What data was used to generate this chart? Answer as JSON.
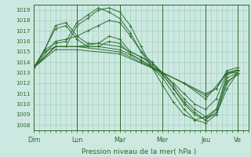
{
  "title": "",
  "xlabel": "Pression niveau de la mer( hPa )",
  "ylabel": "",
  "bg_color": "#cce8e0",
  "plot_bg_color": "#cce8e0",
  "grid_color": "#99ccbb",
  "line_color": "#2d6b2d",
  "ylim": [
    1007.5,
    1019.5
  ],
  "yticks": [
    1008,
    1009,
    1010,
    1011,
    1012,
    1013,
    1014,
    1015,
    1016,
    1017,
    1018,
    1019
  ],
  "day_positions": [
    0,
    24,
    48,
    72,
    96,
    114
  ],
  "day_labels": [
    "Dim",
    "Lun",
    "Mar",
    "Mer",
    "Jeu",
    "Ve"
  ],
  "xlim": [
    0,
    120
  ],
  "lines": [
    [
      0,
      1013.5,
      6,
      1015.0,
      12,
      1015.5,
      18,
      1015.5,
      24,
      1017.5,
      30,
      1018.2,
      36,
      1019.0,
      42,
      1019.2,
      48,
      1018.8,
      54,
      1017.5,
      60,
      1015.5,
      66,
      1013.5,
      72,
      1011.8,
      78,
      1010.2,
      84,
      1009.0,
      90,
      1008.5,
      96,
      1008.8,
      102,
      1009.5,
      108,
      1012.5,
      114,
      1013.0
    ],
    [
      0,
      1013.5,
      6,
      1015.2,
      12,
      1015.8,
      18,
      1016.0,
      24,
      1017.8,
      30,
      1018.5,
      36,
      1019.2,
      42,
      1018.8,
      48,
      1018.2,
      54,
      1016.8,
      60,
      1015.0,
      66,
      1013.5,
      72,
      1012.5,
      78,
      1011.0,
      84,
      1009.5,
      90,
      1008.5,
      96,
      1008.2,
      102,
      1009.0,
      108,
      1011.5,
      114,
      1013.0
    ],
    [
      0,
      1013.5,
      12,
      1016.0,
      18,
      1016.2,
      24,
      1016.5,
      30,
      1017.0,
      36,
      1017.5,
      42,
      1018.0,
      48,
      1017.8,
      54,
      1016.5,
      60,
      1015.0,
      66,
      1014.0,
      72,
      1012.8,
      78,
      1011.5,
      84,
      1010.0,
      90,
      1009.0,
      96,
      1008.5,
      102,
      1009.5,
      108,
      1012.8,
      114,
      1013.2
    ],
    [
      0,
      1013.5,
      12,
      1015.5,
      24,
      1015.5,
      36,
      1015.8,
      48,
      1015.5,
      60,
      1014.5,
      66,
      1014.0,
      72,
      1013.0,
      78,
      1012.0,
      84,
      1011.0,
      90,
      1010.0,
      96,
      1009.5,
      102,
      1010.5,
      108,
      1013.0,
      114,
      1013.2
    ],
    [
      0,
      1013.5,
      12,
      1015.5,
      24,
      1015.5,
      36,
      1015.5,
      48,
      1015.2,
      60,
      1014.2,
      72,
      1013.0,
      84,
      1012.0,
      96,
      1011.0,
      102,
      1011.5,
      108,
      1013.2,
      114,
      1013.5
    ],
    [
      0,
      1013.5,
      12,
      1015.5,
      24,
      1015.5,
      48,
      1015.0,
      60,
      1014.0,
      72,
      1013.0,
      84,
      1012.0,
      96,
      1010.8,
      102,
      1011.5,
      108,
      1013.0,
      114,
      1013.3
    ],
    [
      0,
      1013.5,
      12,
      1015.2,
      24,
      1015.2,
      48,
      1014.8,
      72,
      1013.0,
      84,
      1012.0,
      96,
      1010.5,
      108,
      1013.0,
      114,
      1013.0
    ],
    [
      0,
      1013.5,
      6,
      1015.2,
      12,
      1017.5,
      18,
      1017.8,
      24,
      1016.5,
      30,
      1015.8,
      36,
      1015.8,
      42,
      1016.5,
      48,
      1016.2,
      54,
      1015.0,
      60,
      1014.5,
      66,
      1013.8,
      72,
      1013.0,
      78,
      1011.8,
      84,
      1010.5,
      90,
      1009.5,
      96,
      1008.8,
      102,
      1009.0,
      108,
      1012.0,
      114,
      1013.0
    ],
    [
      0,
      1013.5,
      6,
      1015.2,
      12,
      1017.2,
      18,
      1017.5,
      24,
      1016.2,
      30,
      1015.5,
      36,
      1015.5,
      42,
      1016.0,
      48,
      1015.8,
      54,
      1014.8,
      60,
      1014.2,
      66,
      1013.5,
      72,
      1012.8,
      78,
      1011.5,
      84,
      1010.2,
      90,
      1009.2,
      96,
      1008.5,
      102,
      1009.2,
      108,
      1012.2,
      114,
      1012.8
    ]
  ]
}
